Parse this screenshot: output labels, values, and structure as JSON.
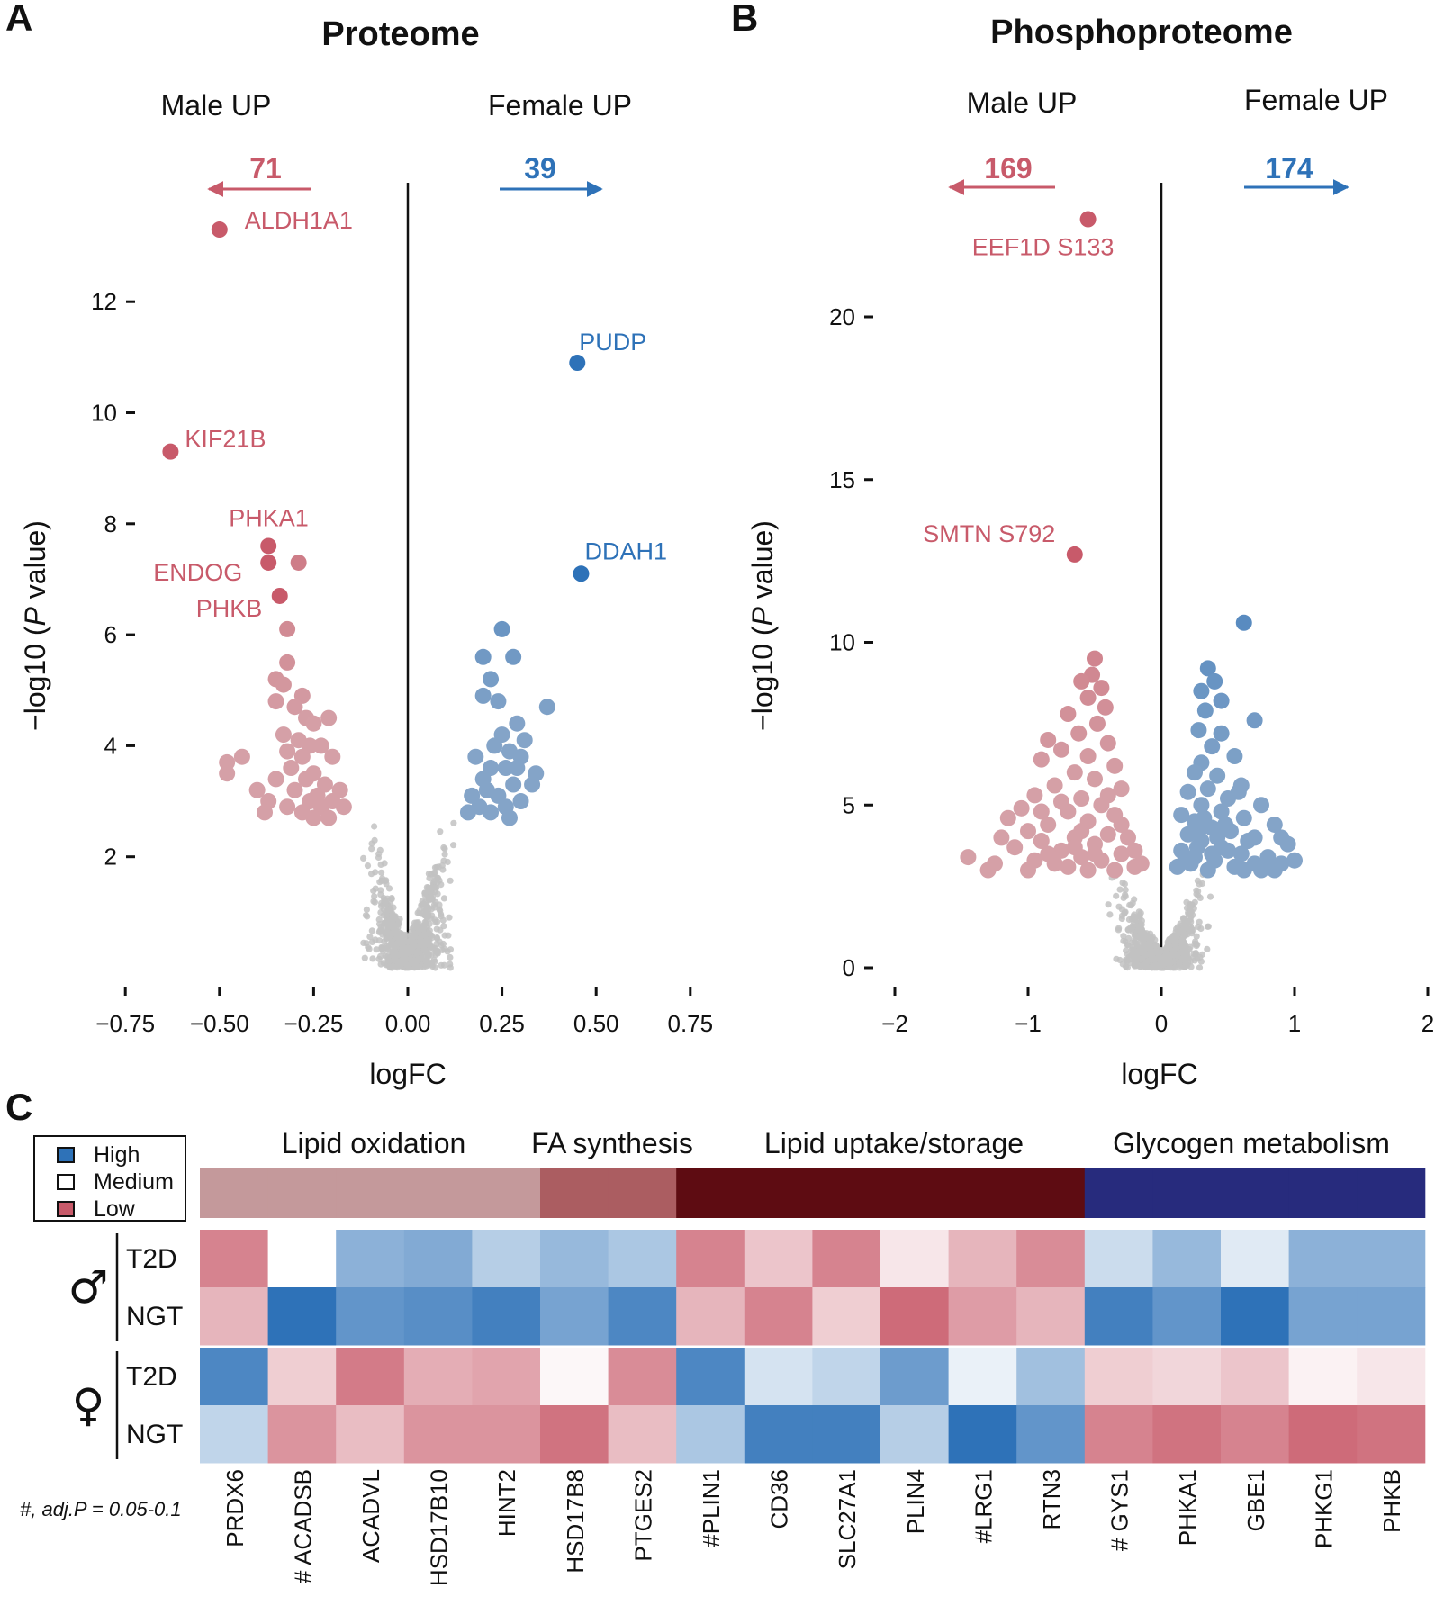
{
  "colors": {
    "male": "#c85a6a",
    "female": "#2e72b8",
    "grey": "#c2c2c2",
    "high": "#2e72b8",
    "low": "#c85a6a"
  },
  "panels": {
    "A": {
      "letter": "A",
      "title": "Proteome",
      "male_label": "Male UP",
      "female_label": "Female UP",
      "male_count": "71",
      "female_count": "39"
    },
    "B": {
      "letter": "B",
      "title": "Phosphoproteome",
      "male_label": "Male UP",
      "female_label": "Female UP",
      "male_count": "169",
      "female_count": "174"
    },
    "C": {
      "letter": "C"
    }
  },
  "chart_data": [
    {
      "type": "scatter",
      "panel": "A",
      "title": "Proteome",
      "xlabel": "logFC",
      "ylabel": "−log10 (P value)",
      "xlim": [
        -0.75,
        0.75
      ],
      "ylim": [
        0,
        13.5
      ],
      "xticks": [
        -0.75,
        -0.5,
        -0.25,
        0.0,
        0.25,
        0.5,
        0.75
      ],
      "xtick_labels": [
        "−0.75",
        "−0.50",
        "−0.25",
        "0.00",
        "0.25",
        "0.50",
        "0.75"
      ],
      "yticks": [
        2,
        4,
        6,
        8,
        10,
        12
      ],
      "ytick_labels": [
        "2",
        "4",
        "6",
        "8",
        "10",
        "12"
      ],
      "labeled_points": [
        {
          "label": "ALDH1A1",
          "x": -0.5,
          "y": 13.3,
          "group": "male"
        },
        {
          "label": "KIF21B",
          "x": -0.63,
          "y": 9.3,
          "group": "male"
        },
        {
          "label": "PHKA1",
          "x": -0.37,
          "y": 7.6,
          "group": "male"
        },
        {
          "label": "ENDOG",
          "x": -0.37,
          "y": 7.3,
          "group": "male"
        },
        {
          "label": "PHKB",
          "x": -0.34,
          "y": 6.7,
          "group": "male"
        },
        {
          "label": "PUDP",
          "x": 0.45,
          "y": 10.9,
          "group": "female"
        },
        {
          "label": "DDAH1",
          "x": 0.46,
          "y": 7.1,
          "group": "female"
        }
      ],
      "male_points": [
        [
          -0.29,
          7.3
        ],
        [
          -0.32,
          6.1
        ],
        [
          -0.32,
          5.5
        ],
        [
          -0.35,
          5.2
        ],
        [
          -0.33,
          5.1
        ],
        [
          -0.28,
          4.9
        ],
        [
          -0.35,
          4.8
        ],
        [
          -0.3,
          4.7
        ],
        [
          -0.27,
          4.5
        ],
        [
          -0.21,
          4.5
        ],
        [
          -0.25,
          4.4
        ],
        [
          -0.33,
          4.2
        ],
        [
          -0.29,
          4.1
        ],
        [
          -0.26,
          4.0
        ],
        [
          -0.23,
          4.0
        ],
        [
          -0.32,
          3.9
        ],
        [
          -0.44,
          3.8
        ],
        [
          -0.48,
          3.7
        ],
        [
          -0.28,
          3.8
        ],
        [
          -0.2,
          3.8
        ],
        [
          -0.31,
          3.6
        ],
        [
          -0.25,
          3.5
        ],
        [
          -0.35,
          3.4
        ],
        [
          -0.27,
          3.4
        ],
        [
          -0.22,
          3.3
        ],
        [
          -0.3,
          3.2
        ],
        [
          -0.18,
          3.2
        ],
        [
          -0.24,
          3.1
        ],
        [
          -0.37,
          3.0
        ],
        [
          -0.26,
          3.0
        ],
        [
          -0.2,
          3.0
        ],
        [
          -0.32,
          2.9
        ],
        [
          -0.23,
          2.9
        ],
        [
          -0.17,
          2.9
        ],
        [
          -0.28,
          2.8
        ],
        [
          -0.38,
          2.8
        ],
        [
          -0.21,
          2.7
        ],
        [
          -0.25,
          2.7
        ],
        [
          -0.48,
          3.5
        ],
        [
          -0.4,
          3.2
        ]
      ],
      "female_points": [
        [
          0.25,
          6.1
        ],
        [
          0.2,
          5.6
        ],
        [
          0.28,
          5.6
        ],
        [
          0.22,
          5.2
        ],
        [
          0.2,
          4.9
        ],
        [
          0.24,
          4.8
        ],
        [
          0.37,
          4.7
        ],
        [
          0.29,
          4.4
        ],
        [
          0.25,
          4.2
        ],
        [
          0.31,
          4.1
        ],
        [
          0.23,
          4.0
        ],
        [
          0.27,
          3.9
        ],
        [
          0.18,
          3.8
        ],
        [
          0.3,
          3.8
        ],
        [
          0.22,
          3.6
        ],
        [
          0.26,
          3.6
        ],
        [
          0.34,
          3.5
        ],
        [
          0.2,
          3.4
        ],
        [
          0.28,
          3.3
        ],
        [
          0.17,
          3.1
        ],
        [
          0.24,
          3.1
        ],
        [
          0.19,
          2.9
        ],
        [
          0.26,
          2.9
        ],
        [
          0.3,
          3.0
        ],
        [
          0.16,
          2.8
        ],
        [
          0.22,
          2.8
        ],
        [
          0.27,
          2.7
        ],
        [
          0.33,
          3.3
        ],
        [
          0.21,
          3.2
        ],
        [
          0.29,
          3.6
        ]
      ]
    },
    {
      "type": "scatter",
      "panel": "B",
      "title": "Phosphoproteome",
      "xlabel": "logFC",
      "ylabel": "−log10 (P value)",
      "xlim": [
        -2,
        2
      ],
      "ylim": [
        0,
        23
      ],
      "xticks": [
        -2,
        -1,
        0,
        1,
        2
      ],
      "xtick_labels": [
        "−2",
        "−1",
        "0",
        "1",
        "2"
      ],
      "yticks": [
        0,
        5,
        10,
        15,
        20
      ],
      "ytick_labels": [
        "0",
        "5",
        "10",
        "15",
        "20"
      ],
      "labeled_points": [
        {
          "label": "EEF1D S133",
          "x": -0.55,
          "y": 23.0,
          "group": "male"
        },
        {
          "label": "SMTN S792",
          "x": -0.65,
          "y": 12.7,
          "group": "male"
        }
      ],
      "male_points": [
        [
          -0.5,
          9.5
        ],
        [
          -0.52,
          9.0
        ],
        [
          -0.6,
          8.8
        ],
        [
          -0.45,
          8.6
        ],
        [
          -0.55,
          8.3
        ],
        [
          -0.42,
          8.0
        ],
        [
          -0.7,
          7.8
        ],
        [
          -0.48,
          7.5
        ],
        [
          -0.62,
          7.2
        ],
        [
          -0.85,
          7.0
        ],
        [
          -0.4,
          6.9
        ],
        [
          -0.75,
          6.7
        ],
        [
          -0.55,
          6.5
        ],
        [
          -0.9,
          6.4
        ],
        [
          -0.35,
          6.2
        ],
        [
          -0.65,
          6.0
        ],
        [
          -0.5,
          5.8
        ],
        [
          -0.8,
          5.6
        ],
        [
          -0.3,
          5.5
        ],
        [
          -0.95,
          5.3
        ],
        [
          -0.6,
          5.2
        ],
        [
          -0.45,
          5.0
        ],
        [
          -1.05,
          4.9
        ],
        [
          -0.7,
          4.8
        ],
        [
          -0.35,
          4.7
        ],
        [
          -1.15,
          4.6
        ],
        [
          -0.55,
          4.5
        ],
        [
          -0.85,
          4.4
        ],
        [
          -1.0,
          4.2
        ],
        [
          -0.4,
          4.1
        ],
        [
          -0.65,
          4.0
        ],
        [
          -0.25,
          4.0
        ],
        [
          -0.9,
          3.9
        ],
        [
          -0.5,
          3.8
        ],
        [
          -1.1,
          3.7
        ],
        [
          -0.75,
          3.6
        ],
        [
          -0.3,
          3.5
        ],
        [
          -0.6,
          3.4
        ],
        [
          -0.95,
          3.3
        ],
        [
          -0.45,
          3.3
        ],
        [
          -1.45,
          3.4
        ],
        [
          -1.25,
          3.2
        ],
        [
          -0.8,
          3.2
        ],
        [
          -0.2,
          3.1
        ],
        [
          -1.0,
          3.0
        ],
        [
          -0.55,
          3.0
        ],
        [
          -0.7,
          3.1
        ],
        [
          -0.35,
          3.0
        ],
        [
          -0.15,
          3.2
        ],
        [
          -1.3,
          3.0
        ],
        [
          -0.9,
          4.8
        ],
        [
          -0.6,
          4.2
        ],
        [
          -0.4,
          5.3
        ],
        [
          -0.3,
          4.4
        ],
        [
          -0.75,
          5.1
        ],
        [
          -0.5,
          3.5
        ],
        [
          -1.2,
          4.0
        ],
        [
          -0.2,
          3.6
        ],
        [
          -0.85,
          3.5
        ],
        [
          -0.65,
          3.7
        ]
      ],
      "female_points": [
        [
          0.62,
          10.6
        ],
        [
          0.35,
          9.2
        ],
        [
          0.4,
          8.8
        ],
        [
          0.3,
          8.5
        ],
        [
          0.45,
          8.2
        ],
        [
          0.7,
          7.6
        ],
        [
          0.33,
          7.9
        ],
        [
          0.28,
          7.3
        ],
        [
          0.45,
          7.2
        ],
        [
          0.38,
          6.8
        ],
        [
          0.55,
          6.5
        ],
        [
          0.3,
          6.3
        ],
        [
          0.25,
          6.0
        ],
        [
          0.42,
          5.9
        ],
        [
          0.6,
          5.6
        ],
        [
          0.35,
          5.5
        ],
        [
          0.2,
          5.4
        ],
        [
          0.5,
          5.2
        ],
        [
          0.75,
          5.0
        ],
        [
          0.3,
          5.0
        ],
        [
          0.45,
          4.8
        ],
        [
          0.15,
          4.7
        ],
        [
          0.62,
          4.6
        ],
        [
          0.25,
          4.5
        ],
        [
          0.38,
          4.3
        ],
        [
          0.85,
          4.4
        ],
        [
          0.52,
          4.2
        ],
        [
          0.2,
          4.1
        ],
        [
          0.7,
          4.0
        ],
        [
          0.3,
          3.9
        ],
        [
          0.95,
          3.8
        ],
        [
          0.45,
          3.7
        ],
        [
          0.15,
          3.6
        ],
        [
          0.6,
          3.5
        ],
        [
          0.8,
          3.4
        ],
        [
          0.25,
          3.4
        ],
        [
          0.4,
          3.3
        ],
        [
          0.9,
          3.2
        ],
        [
          0.55,
          3.1
        ],
        [
          0.12,
          3.1
        ],
        [
          0.75,
          3.0
        ],
        [
          0.35,
          3.0
        ],
        [
          1.0,
          3.3
        ],
        [
          0.5,
          3.6
        ],
        [
          0.65,
          3.9
        ],
        [
          0.22,
          3.2
        ],
        [
          0.85,
          3.0
        ],
        [
          0.42,
          4.0
        ],
        [
          0.32,
          4.6
        ],
        [
          0.58,
          5.4
        ],
        [
          0.27,
          3.7
        ],
        [
          0.7,
          3.2
        ],
        [
          0.48,
          4.4
        ],
        [
          0.18,
          3.4
        ],
        [
          0.38,
          3.5
        ],
        [
          0.9,
          4.0
        ],
        [
          0.62,
          3.0
        ],
        [
          0.28,
          4.2
        ]
      ]
    },
    {
      "type": "heatmap",
      "panel": "C",
      "legend": [
        {
          "label": "High",
          "color": "#2e72b8"
        },
        {
          "label": "Medium",
          "color": "#ffffff"
        },
        {
          "label": "Low",
          "color": "#c85a6a"
        }
      ],
      "categories": [
        {
          "label": "Lipid oxidation",
          "color": "#c4999b",
          "span": 5
        },
        {
          "label": "FA synthesis",
          "color": "#ab5d61",
          "span": 2
        },
        {
          "label": "Lipid uptake/storage",
          "color": "#5e0c12",
          "span": 6
        },
        {
          "label": "Glycogen metabolism",
          "color": "#272b7d",
          "span": 5
        }
      ],
      "columns": [
        "PRDX6",
        "# ACADSB",
        "ACADVL",
        "HSD17B10",
        "HINT2",
        "HSD17B8",
        "PTGES2",
        "#PLIN1",
        "CD36",
        "SLC27A1",
        "PLIN4",
        "#LRG1",
        "RTN3",
        "# GYS1",
        "PHKA1",
        "GBE1",
        "PHKG1",
        "PHKB"
      ],
      "row_groups": [
        {
          "symbol": "♂",
          "name": "male",
          "rows": [
            "T2D",
            "NGT"
          ]
        },
        {
          "symbol": "♀",
          "name": "female",
          "rows": [
            "T2D",
            "NGT"
          ]
        }
      ],
      "values": [
        [
          -0.75,
          0.0,
          0.55,
          0.6,
          0.35,
          0.5,
          0.4,
          -0.75,
          -0.35,
          -0.75,
          -0.15,
          -0.45,
          -0.7,
          0.25,
          0.5,
          0.15,
          0.55,
          0.55
        ],
        [
          -0.45,
          1.0,
          0.75,
          0.8,
          0.9,
          0.65,
          0.85,
          -0.45,
          -0.75,
          -0.3,
          -0.9,
          -0.6,
          -0.45,
          0.9,
          0.75,
          1.0,
          0.65,
          0.65
        ],
        [
          0.85,
          -0.3,
          -0.8,
          -0.5,
          -0.55,
          -0.05,
          -0.7,
          0.85,
          0.2,
          0.3,
          0.7,
          0.1,
          0.45,
          -0.3,
          -0.25,
          -0.35,
          -0.08,
          -0.15
        ],
        [
          0.3,
          -0.65,
          -0.4,
          -0.65,
          -0.65,
          -0.85,
          -0.4,
          0.4,
          0.9,
          0.9,
          0.35,
          1.0,
          0.75,
          -0.75,
          -0.85,
          -0.75,
          -0.9,
          -0.85
        ]
      ],
      "footnote": "#, adj.P = 0.05-0.1"
    }
  ]
}
